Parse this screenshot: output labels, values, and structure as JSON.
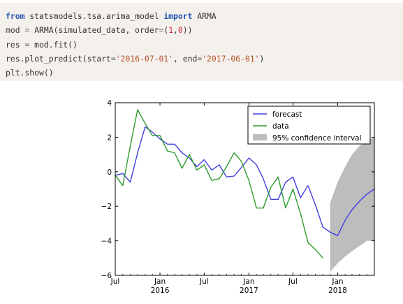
{
  "code_cell": {
    "lines": [
      [
        {
          "t": "from",
          "c": "kw"
        },
        {
          "t": " statsmodels.tsa.arima_model ",
          "c": ""
        },
        {
          "t": "import",
          "c": "kw"
        },
        {
          "t": " ARMA",
          "c": ""
        }
      ],
      [
        {
          "t": "mod ",
          "c": ""
        },
        {
          "t": "=",
          "c": "op"
        },
        {
          "t": " ARMA(simulated_data, order",
          "c": ""
        },
        {
          "t": "=",
          "c": "op"
        },
        {
          "t": "(",
          "c": ""
        },
        {
          "t": "1",
          "c": "num"
        },
        {
          "t": ",",
          "c": ""
        },
        {
          "t": "0",
          "c": "num"
        },
        {
          "t": "))",
          "c": ""
        }
      ],
      [
        {
          "t": "res ",
          "c": ""
        },
        {
          "t": "=",
          "c": "op"
        },
        {
          "t": " mod.fit()",
          "c": ""
        }
      ],
      [
        {
          "t": "res.plot_predict(start",
          "c": ""
        },
        {
          "t": "=",
          "c": "op"
        },
        {
          "t": "'2016-07-01'",
          "c": "str"
        },
        {
          "t": ", end",
          "c": ""
        },
        {
          "t": "=",
          "c": "op"
        },
        {
          "t": "'2017-06-01'",
          "c": "str"
        },
        {
          "t": ")",
          "c": ""
        }
      ],
      [
        {
          "t": "plt.show()",
          "c": ""
        }
      ]
    ]
  },
  "colors": {
    "forecast": "#4040e0",
    "data": "#2e9a2e",
    "confidence": "#bdbdbd"
  },
  "chart_data": {
    "type": "line",
    "ylim": [
      -6,
      4
    ],
    "xlim": [
      "2015-07-01",
      "2018-06-01"
    ],
    "y_ticks": [
      {
        "v": 4,
        "label": "4"
      },
      {
        "v": 2,
        "label": "2"
      },
      {
        "v": 0,
        "label": "0"
      },
      {
        "v": -2,
        "label": "−2"
      },
      {
        "v": -4,
        "label": "−4"
      },
      {
        "v": -6,
        "label": "−6"
      }
    ],
    "x_ticks": [
      {
        "date": "2015-07-01",
        "label": "Jul",
        "sub": ""
      },
      {
        "date": "2016-01-01",
        "label": "Jan",
        "sub": "2016"
      },
      {
        "date": "2016-07-01",
        "label": "Jul",
        "sub": ""
      },
      {
        "date": "2017-01-01",
        "label": "Jan",
        "sub": "2017"
      },
      {
        "date": "2017-07-01",
        "label": "Jul",
        "sub": ""
      },
      {
        "date": "2018-01-01",
        "label": "Jan",
        "sub": "2018"
      }
    ],
    "legend": {
      "position": "top-right",
      "entries": [
        {
          "label": "forecast",
          "kind": "line",
          "series": "forecast"
        },
        {
          "label": "data",
          "kind": "line",
          "series": "data"
        },
        {
          "label": "95% confidence interval",
          "kind": "patch",
          "series": "confidence"
        }
      ]
    },
    "series": [
      {
        "key": "forecast",
        "x": [
          "2015-07-01",
          "2015-08-01",
          "2015-09-01",
          "2015-10-01",
          "2015-11-01",
          "2015-12-01",
          "2016-01-01",
          "2016-02-01",
          "2016-03-01",
          "2016-04-01",
          "2016-05-01",
          "2016-06-01",
          "2016-07-01",
          "2016-08-01",
          "2016-09-01",
          "2016-10-01",
          "2016-11-01",
          "2016-12-01",
          "2017-01-01",
          "2017-02-01",
          "2017-03-01",
          "2017-04-01",
          "2017-05-01",
          "2017-06-01",
          "2017-07-01",
          "2017-08-01",
          "2017-09-01",
          "2017-10-01",
          "2017-11-01",
          "2017-12-01",
          "2018-01-01",
          "2018-02-01",
          "2018-03-01",
          "2018-04-01",
          "2018-05-01",
          "2018-06-01"
        ],
        "y": [
          -0.2,
          -0.1,
          -0.6,
          1.1,
          2.6,
          2.3,
          1.9,
          1.6,
          1.6,
          1.1,
          0.8,
          0.3,
          0.7,
          0.1,
          0.4,
          -0.3,
          -0.25,
          0.25,
          0.8,
          0.4,
          -0.4,
          -1.6,
          -1.6,
          -0.6,
          -0.3,
          -1.5,
          -0.8,
          -1.9,
          -3.2,
          -3.5,
          -3.7,
          -2.8,
          -2.2,
          -1.7,
          -1.3,
          -1.0
        ]
      },
      {
        "key": "data",
        "x": [
          "2015-07-01",
          "2015-08-01",
          "2015-09-01",
          "2015-10-01",
          "2015-11-01",
          "2015-12-01",
          "2016-01-01",
          "2016-02-01",
          "2016-03-01",
          "2016-04-01",
          "2016-05-01",
          "2016-06-01",
          "2016-07-01",
          "2016-08-01",
          "2016-09-01",
          "2016-10-01",
          "2016-11-01",
          "2016-12-01",
          "2017-01-01",
          "2017-02-01",
          "2017-03-01",
          "2017-04-01",
          "2017-05-01",
          "2017-06-01",
          "2017-07-01",
          "2017-08-01",
          "2017-09-01",
          "2017-10-01",
          "2017-11-01",
          "2017-12-01"
        ],
        "y": [
          -0.2,
          -0.8,
          1.5,
          3.6,
          2.8,
          2.1,
          2.1,
          1.2,
          1.1,
          0.2,
          1.0,
          0.1,
          0.4,
          -0.5,
          -0.4,
          0.3,
          1.1,
          0.6,
          -0.5,
          -2.1,
          -2.1,
          -0.9,
          -0.3,
          -2.1,
          -1.0,
          -2.4,
          -4.1,
          -4.5,
          -5.0,
          null
        ]
      }
    ],
    "confidence_interval": {
      "x": [
        "2017-12-01",
        "2018-01-01",
        "2018-02-01",
        "2018-03-01",
        "2018-04-01",
        "2018-05-01",
        "2018-06-01"
      ],
      "lower": [
        -5.8,
        -5.3,
        -4.9,
        -4.6,
        -4.3,
        -4.0,
        -4.0
      ],
      "upper": [
        -1.8,
        -0.6,
        0.3,
        1.0,
        1.5,
        1.8,
        2.0
      ]
    }
  }
}
